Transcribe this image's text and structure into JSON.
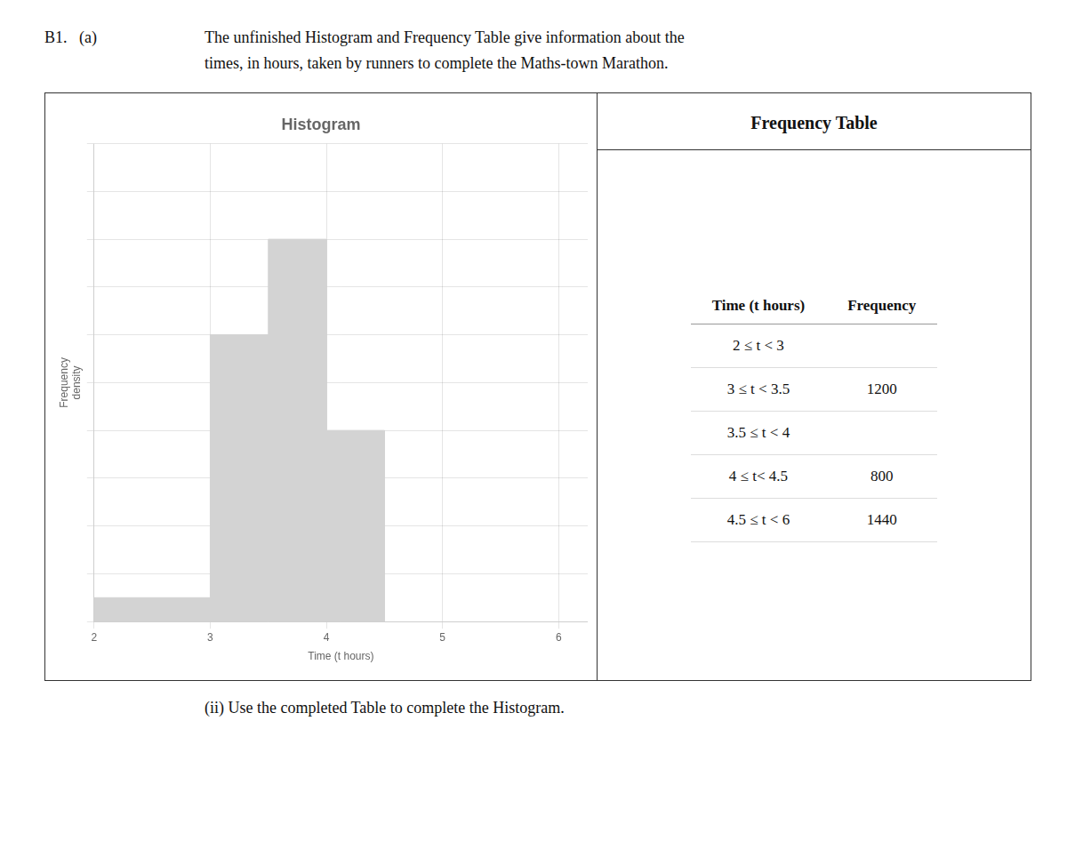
{
  "chart_data": {
    "type": "histogram",
    "title": "Histogram",
    "xlabel": "Time (t hours)",
    "ylabel": [
      "Frequency",
      "density"
    ],
    "bins": [
      2,
      3,
      3.5,
      4,
      4.5
    ],
    "values": [
      200,
      2400,
      3200,
      1600
    ],
    "color": "#d3d3d3",
    "xlim": [
      2,
      6.25
    ],
    "xticks": [
      2,
      3,
      4,
      5,
      6
    ],
    "ylim": [
      0,
      4000
    ],
    "yticks": [
      0,
      400,
      800,
      1200,
      1600,
      2000,
      2400,
      2800,
      3200,
      3600,
      4000
    ],
    "grid": true,
    "tick_labels": "x",
    "annotations": [
      "B1.   (a)",
      "The unfinished Histogram and Frequency Table give information about the",
      "times, in hours, taken by runners to complete the Maths-town Marathon."
    ],
    "table": {
      "title": "Frequency Table",
      "headers": [
        "Time (t hours)",
        "Frequency"
      ],
      "rows": [
        [
          "2 ≤ t < 3",
          null
        ],
        [
          "3 ≤ t < 3.5",
          "1200"
        ],
        [
          "3.5 ≤ t < 4",
          null
        ],
        [
          "4 ≤ t< 4.5",
          "800"
        ],
        [
          "4.5 ≤ t < 6",
          "1440"
        ]
      ]
    },
    "subtitle": "(ii) Use the completed Table to complete the Histogram."
  }
}
